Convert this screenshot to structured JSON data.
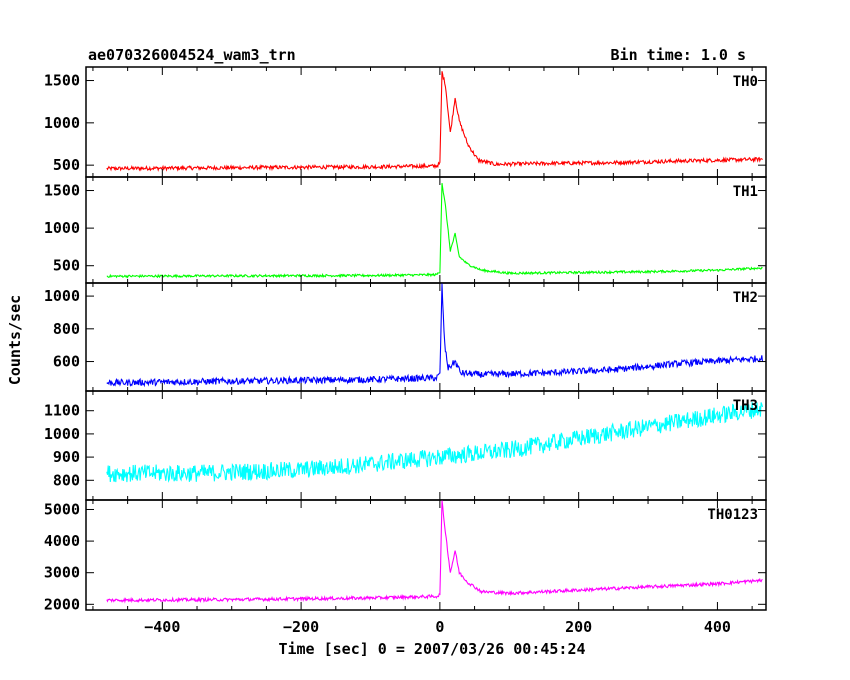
{
  "header": {
    "title": "ae070326004524_wam3_trn",
    "bin_time": "Bin time: 1.0 s"
  },
  "chart_data": {
    "type": "line",
    "xlabel": "Time [sec] 0 = 2007/03/26 00:45:24",
    "ylabel": "Counts/sec",
    "xlim": [
      -510,
      470
    ],
    "x_ticks": [
      -400,
      -200,
      0,
      200,
      400
    ],
    "x_tick_labels": [
      "−400",
      "−200",
      "0",
      "200",
      "400"
    ],
    "grid": false,
    "panels": [
      {
        "name": "TH0",
        "color": "#ff0000",
        "ylim": [
          360,
          1660
        ],
        "y_ticks": [
          500,
          1000,
          1500
        ],
        "y_tick_labels": [
          "500",
          "1000",
          "1500"
        ],
        "points": [
          [
            -480,
            460
          ],
          [
            -300,
            470
          ],
          [
            -100,
            480
          ],
          [
            -5,
            490
          ],
          [
            0,
            520
          ],
          [
            3,
            1600
          ],
          [
            8,
            1450
          ],
          [
            15,
            880
          ],
          [
            22,
            1300
          ],
          [
            28,
            1020
          ],
          [
            40,
            750
          ],
          [
            55,
            560
          ],
          [
            80,
            510
          ],
          [
            150,
            520
          ],
          [
            250,
            530
          ],
          [
            350,
            550
          ],
          [
            465,
            570
          ]
        ],
        "noise": 22
      },
      {
        "name": "TH1",
        "color": "#00ff00",
        "ylim": [
          270,
          1680
        ],
        "y_ticks": [
          500,
          1000,
          1500
        ],
        "y_tick_labels": [
          "500",
          "1000",
          "1500"
        ],
        "points": [
          [
            -480,
            360
          ],
          [
            -300,
            365
          ],
          [
            -100,
            370
          ],
          [
            -5,
            380
          ],
          [
            0,
            420
          ],
          [
            3,
            1600
          ],
          [
            8,
            1300
          ],
          [
            15,
            700
          ],
          [
            22,
            920
          ],
          [
            28,
            620
          ],
          [
            40,
            520
          ],
          [
            60,
            440
          ],
          [
            100,
            400
          ],
          [
            200,
            410
          ],
          [
            300,
            420
          ],
          [
            400,
            440
          ],
          [
            465,
            470
          ]
        ],
        "noise": 15
      },
      {
        "name": "TH2",
        "color": "#0000ff",
        "ylim": [
          420,
          1080
        ],
        "y_ticks": [
          600,
          800,
          1000
        ],
        "y_tick_labels": [
          "600",
          "800",
          "1000"
        ],
        "points": [
          [
            -480,
            470
          ],
          [
            -300,
            480
          ],
          [
            -100,
            490
          ],
          [
            -5,
            500
          ],
          [
            0,
            520
          ],
          [
            3,
            1060
          ],
          [
            7,
            700
          ],
          [
            12,
            560
          ],
          [
            22,
            600
          ],
          [
            30,
            530
          ],
          [
            60,
            520
          ],
          [
            150,
            530
          ],
          [
            250,
            550
          ],
          [
            350,
            590
          ],
          [
            465,
            620
          ]
        ],
        "noise": 20
      },
      {
        "name": "TH3",
        "color": "#00ffff",
        "ylim": [
          715,
          1185
        ],
        "y_ticks": [
          800,
          900,
          1000,
          1100
        ],
        "y_tick_labels": [
          "800",
          "900",
          "1000",
          "1100"
        ],
        "points": [
          [
            -480,
            830
          ],
          [
            -350,
            830
          ],
          [
            -200,
            845
          ],
          [
            -100,
            870
          ],
          [
            0,
            900
          ],
          [
            100,
            930
          ],
          [
            200,
            980
          ],
          [
            300,
            1030
          ],
          [
            400,
            1080
          ],
          [
            465,
            1110
          ]
        ],
        "noise": 38
      },
      {
        "name": "TH0123",
        "color": "#ff00ff",
        "ylim": [
          1820,
          5300
        ],
        "y_ticks": [
          2000,
          3000,
          4000,
          5000
        ],
        "y_tick_labels": [
          "2000",
          "3000",
          "4000",
          "5000"
        ],
        "points": [
          [
            -480,
            2130
          ],
          [
            -300,
            2150
          ],
          [
            -100,
            2200
          ],
          [
            -5,
            2250
          ],
          [
            0,
            2300
          ],
          [
            3,
            5250
          ],
          [
            8,
            4300
          ],
          [
            15,
            3000
          ],
          [
            22,
            3700
          ],
          [
            28,
            3000
          ],
          [
            40,
            2700
          ],
          [
            60,
            2400
          ],
          [
            100,
            2350
          ],
          [
            200,
            2450
          ],
          [
            300,
            2550
          ],
          [
            400,
            2650
          ],
          [
            465,
            2760
          ]
        ],
        "noise": 50
      }
    ]
  }
}
